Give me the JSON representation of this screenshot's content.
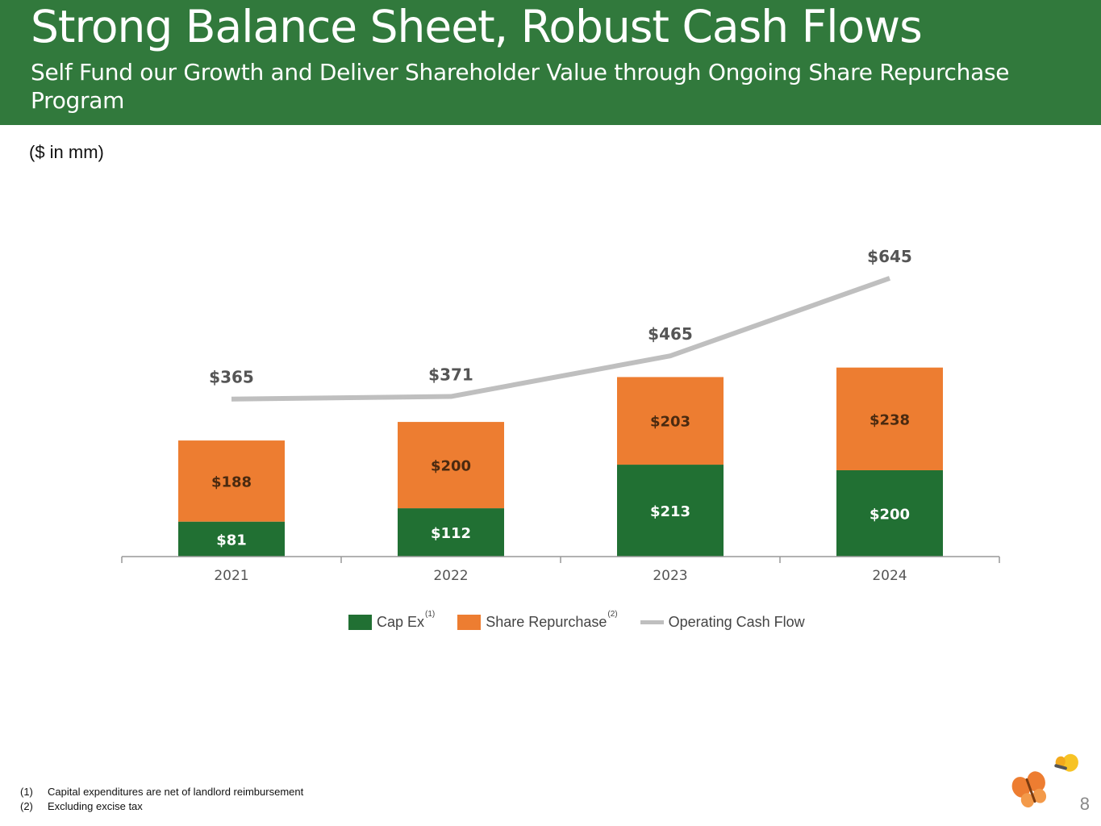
{
  "header": {
    "title": "Strong Balance Sheet, Robust Cash Flows",
    "subtitle": "Self Fund our Growth and Deliver Shareholder Value through Ongoing Share Repurchase Program"
  },
  "units_label": "($ in mm)",
  "chart_data": {
    "type": "bar",
    "stacked": true,
    "categories": [
      "2021",
      "2022",
      "2023",
      "2024"
    ],
    "series": [
      {
        "name": "Cap Ex",
        "kind": "bar",
        "color": "#217033",
        "values": [
          81,
          112,
          213,
          200
        ],
        "labels": [
          "$81",
          "$112",
          "$213",
          "$200"
        ]
      },
      {
        "name": "Share Repurchase",
        "kind": "bar",
        "color": "#ed7d31",
        "values": [
          188,
          200,
          203,
          238
        ],
        "labels": [
          "$188",
          "$200",
          "$203",
          "$238"
        ]
      },
      {
        "name": "Operating Cash Flow",
        "kind": "line",
        "color": "#bfbfbf",
        "values": [
          365,
          371,
          465,
          645
        ],
        "labels": [
          "$365",
          "$371",
          "$465",
          "$645"
        ]
      }
    ],
    "legend": [
      {
        "label": "Cap Ex",
        "note": "(1)"
      },
      {
        "label": "Share Repurchase",
        "note": "(2)"
      },
      {
        "label": "Operating Cash Flow",
        "note": ""
      }
    ],
    "legend_position": "bottom"
  },
  "footnotes": [
    {
      "num": "(1)",
      "text": "Capital expenditures are net of landlord reimbursement"
    },
    {
      "num": "(2)",
      "text": "Excluding excise tax"
    }
  ],
  "page_number": "8",
  "logo": "butterfly-logo-icon"
}
